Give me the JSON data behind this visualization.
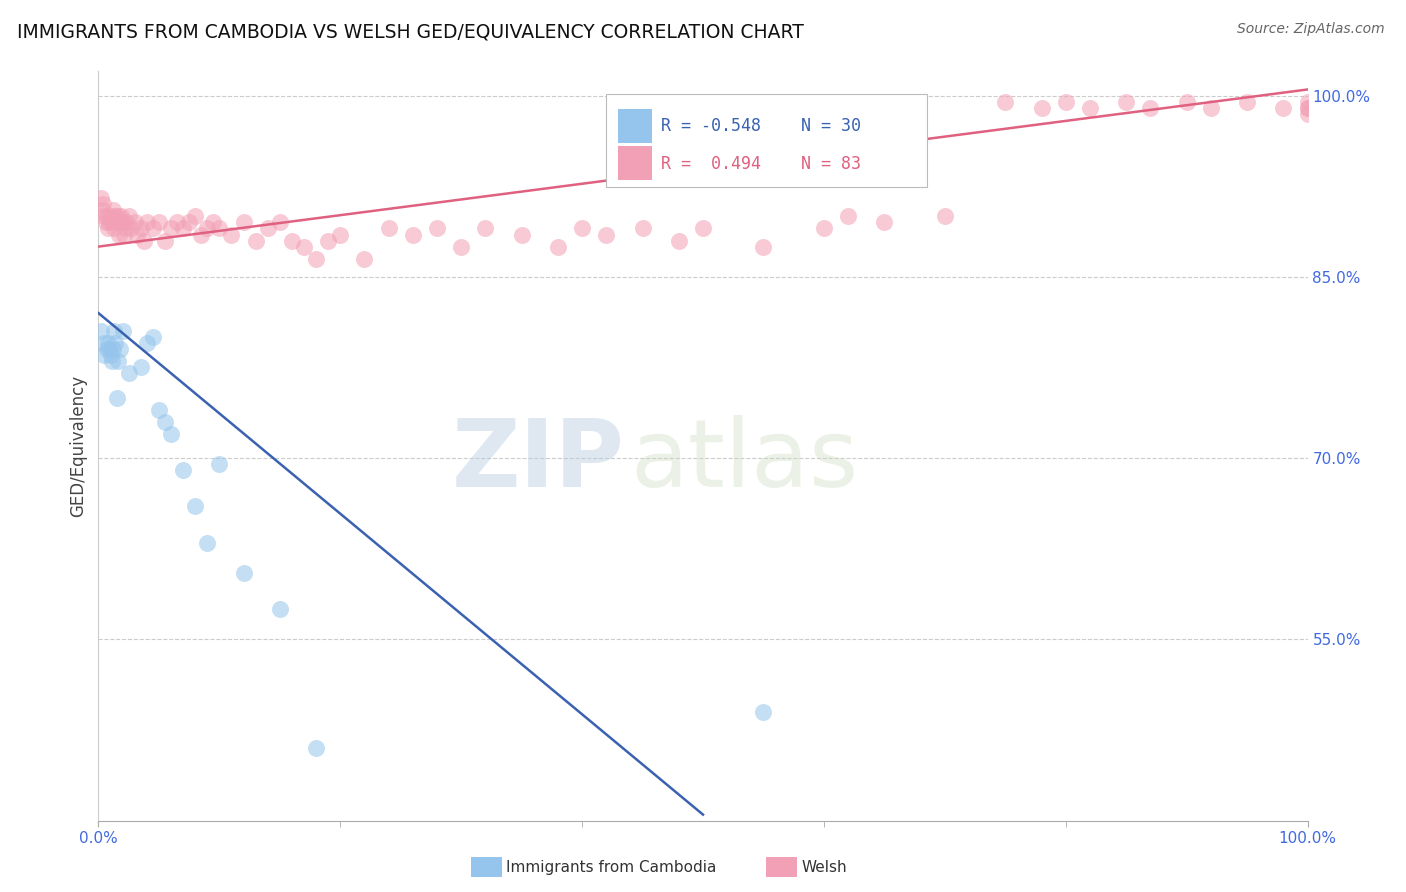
{
  "title": "IMMIGRANTS FROM CAMBODIA VS WELSH GED/EQUIVALENCY CORRELATION CHART",
  "source": "Source: ZipAtlas.com",
  "ylabel": "GED/Equivalency",
  "yticks": [
    55.0,
    70.0,
    85.0,
    100.0
  ],
  "ytick_labels": [
    "55.0%",
    "70.0%",
    "85.0%",
    "100.0%"
  ],
  "legend_blue_r": "-0.548",
  "legend_blue_n": "30",
  "legend_pink_r": "0.494",
  "legend_pink_n": "83",
  "blue_color": "#95C5EC",
  "pink_color": "#F2A0B5",
  "blue_line_color": "#3A62B0",
  "pink_line_color": "#E06080",
  "watermark_zip": "ZIP",
  "watermark_atlas": "atlas",
  "background_color": "#ffffff",
  "grid_color": "#cccccc",
  "blue_scatter_x": [
    0.2,
    0.5,
    0.5,
    0.7,
    0.8,
    0.9,
    1.0,
    1.1,
    1.2,
    1.3,
    1.4,
    1.5,
    1.6,
    1.8,
    2.0,
    2.5,
    3.5,
    4.0,
    4.5,
    5.0,
    5.5,
    6.0,
    7.0,
    8.0,
    9.0,
    10.0,
    12.0,
    15.0,
    18.0,
    55.0
  ],
  "blue_scatter_y": [
    80.5,
    79.5,
    78.5,
    79.0,
    79.5,
    79.0,
    78.5,
    78.0,
    79.0,
    80.5,
    79.5,
    75.0,
    78.0,
    79.0,
    80.5,
    77.0,
    77.5,
    79.5,
    80.0,
    74.0,
    73.0,
    72.0,
    69.0,
    66.0,
    63.0,
    69.5,
    60.5,
    57.5,
    46.0,
    49.0
  ],
  "pink_scatter_x": [
    0.2,
    0.3,
    0.4,
    0.5,
    0.6,
    0.7,
    0.8,
    0.9,
    1.0,
    1.1,
    1.2,
    1.3,
    1.4,
    1.5,
    1.6,
    1.7,
    1.8,
    1.9,
    2.0,
    2.1,
    2.2,
    2.3,
    2.5,
    2.7,
    3.0,
    3.2,
    3.5,
    3.8,
    4.0,
    4.5,
    5.0,
    5.5,
    6.0,
    6.5,
    7.0,
    7.5,
    8.0,
    8.5,
    9.0,
    9.5,
    10.0,
    11.0,
    12.0,
    13.0,
    14.0,
    15.0,
    16.0,
    17.0,
    18.0,
    19.0,
    20.0,
    22.0,
    24.0,
    26.0,
    28.0,
    30.0,
    32.0,
    35.0,
    38.0,
    40.0,
    42.0,
    45.0,
    48.0,
    50.0,
    55.0,
    60.0,
    62.0,
    65.0,
    70.0,
    75.0,
    78.0,
    80.0,
    82.0,
    85.0,
    87.0,
    90.0,
    92.0,
    95.0,
    98.0,
    100.0,
    100.0,
    100.0,
    100.0
  ],
  "pink_scatter_y": [
    91.5,
    90.5,
    91.0,
    90.0,
    89.5,
    90.0,
    89.0,
    89.5,
    90.0,
    89.5,
    90.5,
    89.0,
    90.0,
    89.5,
    90.0,
    88.5,
    89.5,
    90.0,
    89.5,
    88.5,
    89.0,
    89.5,
    90.0,
    89.0,
    89.5,
    88.5,
    89.0,
    88.0,
    89.5,
    89.0,
    89.5,
    88.0,
    89.0,
    89.5,
    89.0,
    89.5,
    90.0,
    88.5,
    89.0,
    89.5,
    89.0,
    88.5,
    89.5,
    88.0,
    89.0,
    89.5,
    88.0,
    87.5,
    86.5,
    88.0,
    88.5,
    86.5,
    89.0,
    88.5,
    89.0,
    87.5,
    89.0,
    88.5,
    87.5,
    89.0,
    88.5,
    89.0,
    88.0,
    89.0,
    87.5,
    89.0,
    90.0,
    89.5,
    90.0,
    99.5,
    99.0,
    99.5,
    99.0,
    99.5,
    99.0,
    99.5,
    99.0,
    99.5,
    99.0,
    99.5,
    99.0,
    98.5,
    99.0
  ],
  "blue_line_x": [
    0.0,
    50.0
  ],
  "blue_line_y": [
    82.0,
    40.5
  ],
  "pink_line_x": [
    0.0,
    100.0
  ],
  "pink_line_y": [
    87.5,
    100.5
  ],
  "xlim": [
    0.0,
    100.0
  ],
  "ylim": [
    40.0,
    102.0
  ],
  "xtick_positions": [
    0.0,
    100.0
  ],
  "xtick_labels": [
    "0.0%",
    "100.0%"
  ],
  "tick_color": "#4169E1"
}
